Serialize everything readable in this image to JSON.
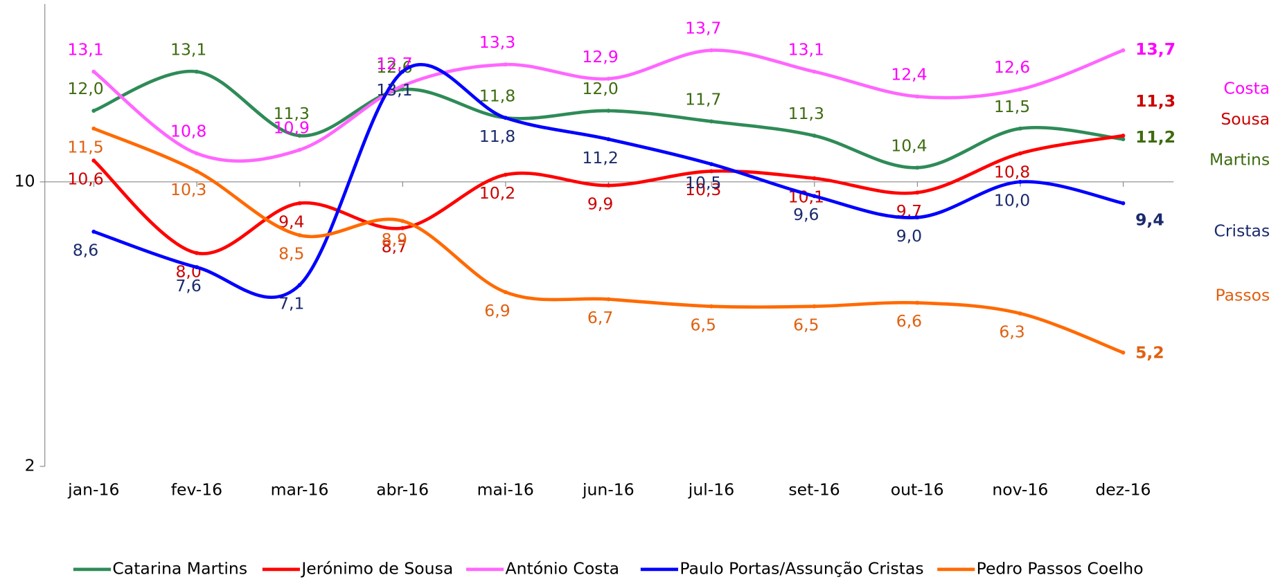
{
  "chart_data": {
    "type": "line",
    "categories": [
      "jan-16",
      "fev-16",
      "mar-16",
      "abr-16",
      "mai-16",
      "jun-16",
      "jul-16",
      "set-16",
      "out-16",
      "nov-16",
      "dez-16"
    ],
    "ylim": [
      2,
      15
    ],
    "yticks": [
      2,
      10
    ],
    "series": [
      {
        "name": "Catarina Martins",
        "end_label": "Martins",
        "color": "#2e8b57",
        "label_color": "#3d6b0f",
        "values": [
          12.0,
          13.1,
          11.3,
          12.6,
          11.8,
          12.0,
          11.7,
          11.3,
          10.4,
          11.5,
          11.2
        ],
        "value_labels": [
          "12,0",
          "13,1",
          "11,3",
          "12,6",
          "11,8",
          "12,0",
          "11,7",
          "11,3",
          "10,4",
          "11,5",
          "11,2"
        ]
      },
      {
        "name": "Jerónimo de Sousa",
        "end_label": "Sousa",
        "color": "#ff0000",
        "label_color": "#cc0000",
        "values": [
          10.6,
          8.0,
          9.4,
          8.7,
          10.2,
          9.9,
          10.3,
          10.1,
          9.7,
          10.8,
          11.3
        ],
        "value_labels": [
          "10,6",
          "8,0",
          "9,4",
          "8,7",
          "10,2",
          "9,9",
          "10,3",
          "10,1",
          "9,7",
          "10,8",
          "11,3"
        ]
      },
      {
        "name": "António Costa",
        "end_label": "Costa",
        "color": "#ff66ff",
        "label_color": "#ff00ff",
        "values": [
          13.1,
          10.8,
          10.9,
          12.7,
          13.3,
          12.9,
          13.7,
          13.1,
          12.4,
          12.6,
          13.7
        ],
        "value_labels": [
          "13,1",
          "10,8",
          "10,9",
          "12,7",
          "13,3",
          "12,9",
          "13,7",
          "13,1",
          "12,4",
          "12,6",
          "13,7"
        ]
      },
      {
        "name": "Paulo Portas/Assunção Cristas",
        "end_label": "Cristas",
        "color": "#0000ff",
        "label_color": "#1a2a6c",
        "values": [
          8.6,
          7.6,
          7.1,
          13.1,
          11.8,
          11.2,
          10.5,
          9.6,
          9.0,
          10.0,
          9.4
        ],
        "value_labels": [
          "8,6",
          "7,6",
          "7,1",
          "13,1",
          "11,8",
          "11,2",
          "10,5",
          "9,6",
          "9,0",
          "10,0",
          "9,4"
        ]
      },
      {
        "name": "Pedro Passos Coelho",
        "end_label": "Passos",
        "color": "#ff6a00",
        "label_color": "#e06010",
        "values": [
          11.5,
          10.3,
          8.5,
          8.9,
          6.9,
          6.7,
          6.5,
          6.5,
          6.6,
          6.3,
          5.2
        ],
        "value_labels": [
          "11,5",
          "10,3",
          "8,5",
          "8,9",
          "6,9",
          "6,7",
          "6,5",
          "6,5",
          "6,6",
          "6,3",
          "5,2"
        ]
      }
    ]
  }
}
